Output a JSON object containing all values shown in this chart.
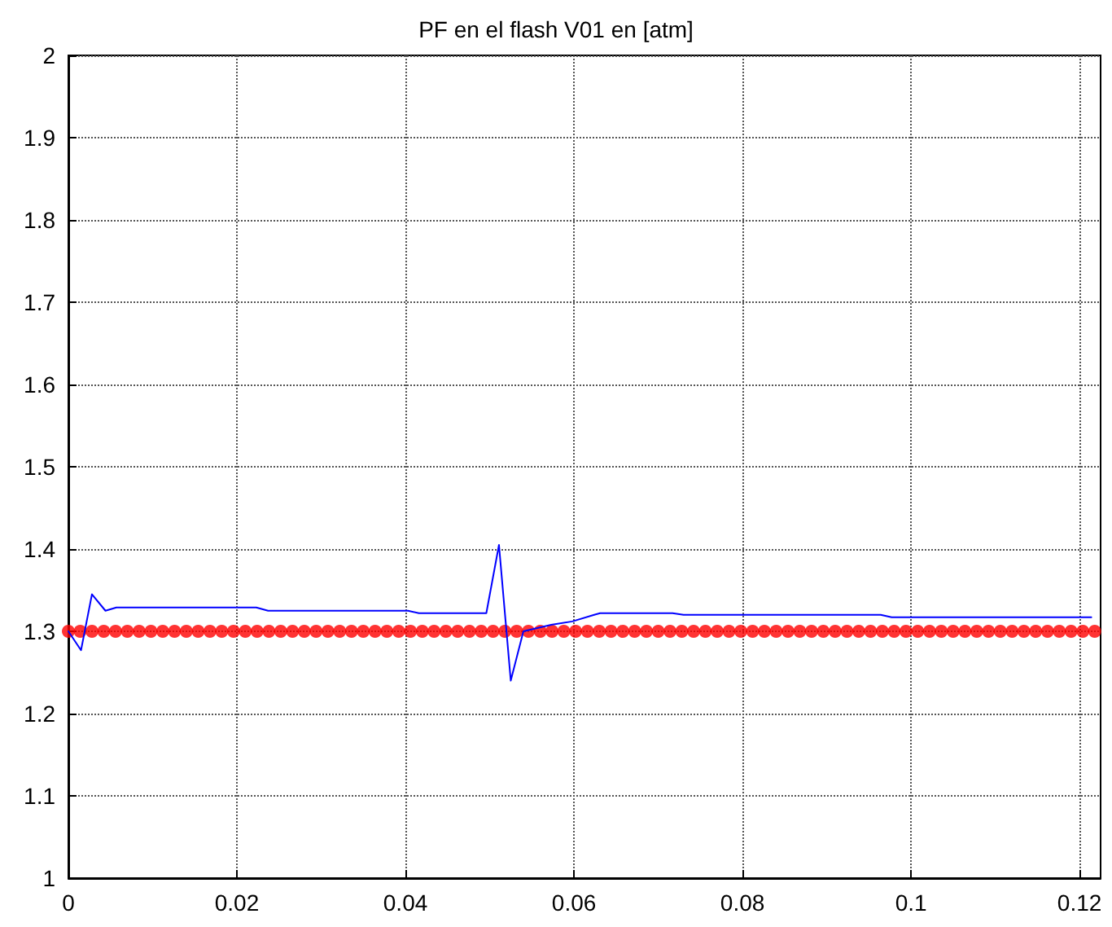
{
  "chart_data": {
    "type": "line",
    "title": "PF en el flash V01 en [atm]",
    "xlim": [
      0,
      0.1225
    ],
    "xticks": [
      0,
      0.02,
      0.04,
      0.06,
      0.08,
      0.1,
      0.12
    ],
    "ylim": [
      1,
      2
    ],
    "yticks": [
      1,
      1.1,
      1.2,
      1.3,
      1.4,
      1.5,
      1.6,
      1.7,
      1.8,
      1.9,
      2
    ],
    "grid": true,
    "line_style": "solid",
    "series": [
      {
        "color": "#0000ff",
        "marker": "none",
        "x": [
          0,
          0.0015,
          0.0028,
          0.0044,
          0.0057,
          0.0223,
          0.0237,
          0.0403,
          0.0416,
          0.0496,
          0.0511,
          0.0525,
          0.054,
          0.0573,
          0.0598,
          0.0624,
          0.0631,
          0.0717,
          0.073,
          0.0964,
          0.0977,
          0.1214
        ],
        "values": [
          1.3,
          1.277,
          1.345,
          1.325,
          1.329,
          1.329,
          1.325,
          1.325,
          1.322,
          1.322,
          1.405,
          1.24,
          1.3,
          1.308,
          1.312,
          1.32,
          1.322,
          1.322,
          1.32,
          1.32,
          1.317,
          1.317
        ]
      },
      {
        "type": "scatter",
        "color": "#ff0000",
        "marker": "circle",
        "x": [
          0,
          0.0014,
          0.0028,
          0.0042,
          0.0056,
          0.007,
          0.0084,
          0.0098,
          0.0112,
          0.0126,
          0.014,
          0.0154,
          0.0168,
          0.0182,
          0.0196,
          0.021,
          0.0224,
          0.0238,
          0.0252,
          0.0266,
          0.028,
          0.0294,
          0.0308,
          0.0322,
          0.0336,
          0.035,
          0.0364,
          0.0378,
          0.0392,
          0.0406,
          0.042,
          0.0434,
          0.0448,
          0.0462,
          0.0476,
          0.049,
          0.0504,
          0.0518,
          0.0532,
          0.0546,
          0.056,
          0.0574,
          0.0588,
          0.0602,
          0.0616,
          0.063,
          0.0644,
          0.0658,
          0.0672,
          0.0686,
          0.07,
          0.0714,
          0.0728,
          0.0742,
          0.0756,
          0.077,
          0.0784,
          0.0798,
          0.0812,
          0.0826,
          0.084,
          0.0854,
          0.0868,
          0.0882,
          0.0896,
          0.091,
          0.0924,
          0.0938,
          0.0952,
          0.0966,
          0.098,
          0.0994,
          0.1008,
          0.1022,
          0.1036,
          0.105,
          0.1064,
          0.1078,
          0.1092,
          0.1106,
          0.112,
          0.1134,
          0.1148,
          0.1162,
          0.1176,
          0.119,
          0.1204,
          0.1218
        ],
        "values": [
          1.3,
          1.3,
          1.3,
          1.3,
          1.3,
          1.3,
          1.3,
          1.3,
          1.3,
          1.3,
          1.3,
          1.3,
          1.3,
          1.3,
          1.3,
          1.3,
          1.3,
          1.3,
          1.3,
          1.3,
          1.3,
          1.3,
          1.3,
          1.3,
          1.3,
          1.3,
          1.3,
          1.3,
          1.3,
          1.3,
          1.3,
          1.3,
          1.3,
          1.3,
          1.3,
          1.3,
          1.3,
          1.3,
          1.3,
          1.3,
          1.3,
          1.3,
          1.3,
          1.3,
          1.3,
          1.3,
          1.3,
          1.3,
          1.3,
          1.3,
          1.3,
          1.3,
          1.3,
          1.3,
          1.3,
          1.3,
          1.3,
          1.3,
          1.3,
          1.3,
          1.3,
          1.3,
          1.3,
          1.3,
          1.3,
          1.3,
          1.3,
          1.3,
          1.3,
          1.3,
          1.3,
          1.3,
          1.3,
          1.3,
          1.3,
          1.3,
          1.3,
          1.3,
          1.3,
          1.3,
          1.3,
          1.3,
          1.3,
          1.3,
          1.3,
          1.3,
          1.3,
          1.3
        ]
      }
    ]
  }
}
